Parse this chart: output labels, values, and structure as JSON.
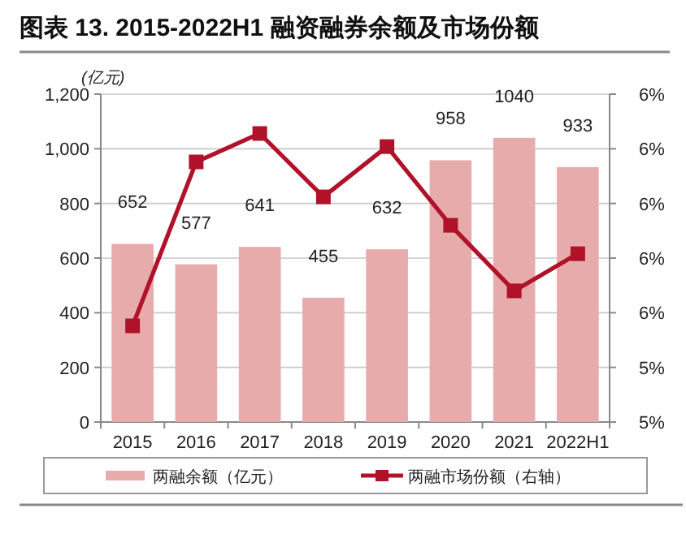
{
  "chart_data": {
    "type": "bar",
    "title": "图表 13. 2015-2022H1 融资融券余额及市场份额",
    "ylabel": "(亿元)",
    "categories": [
      "2015",
      "2016",
      "2017",
      "2018",
      "2019",
      "2020",
      "2021",
      "2022H1"
    ],
    "series": [
      {
        "name": "两融余额（亿元）",
        "color": "#e8abab",
        "values": [
          652,
          577,
          641,
          455,
          632,
          958,
          1040,
          933
        ],
        "value_labels": [
          "652",
          "577",
          "641",
          "455",
          "632",
          "958",
          "1040",
          "933"
        ]
      },
      {
        "name": "两融市场份额（右轴）",
        "type": "line",
        "axis": "y2",
        "color": "#b0122a",
        "values": [
          5.44,
          6.19,
          6.32,
          6.03,
          6.26,
          5.9,
          5.6,
          5.77
        ]
      }
    ],
    "ylim": [
      0,
      1200
    ],
    "yticks": [
      0,
      200,
      400,
      600,
      800,
      {
        "value": 1000,
        "label": "1,000"
      },
      {
        "value": 1200,
        "label": "1,200"
      }
    ],
    "y2lim": [
      5,
      6.5
    ],
    "y2ticks": [
      {
        "value": 5,
        "label": "5%"
      },
      {
        "value": 5.25,
        "label": "5%"
      },
      {
        "value": 5.5,
        "label": "6%"
      },
      {
        "value": 5.75,
        "label": "6%"
      },
      {
        "value": 6,
        "label": "6%"
      },
      {
        "value": 6.25,
        "label": "6%"
      },
      {
        "value": 6.5,
        "label": "6%"
      }
    ],
    "grid": "y",
    "legend": "bottom",
    "marker": "square"
  }
}
